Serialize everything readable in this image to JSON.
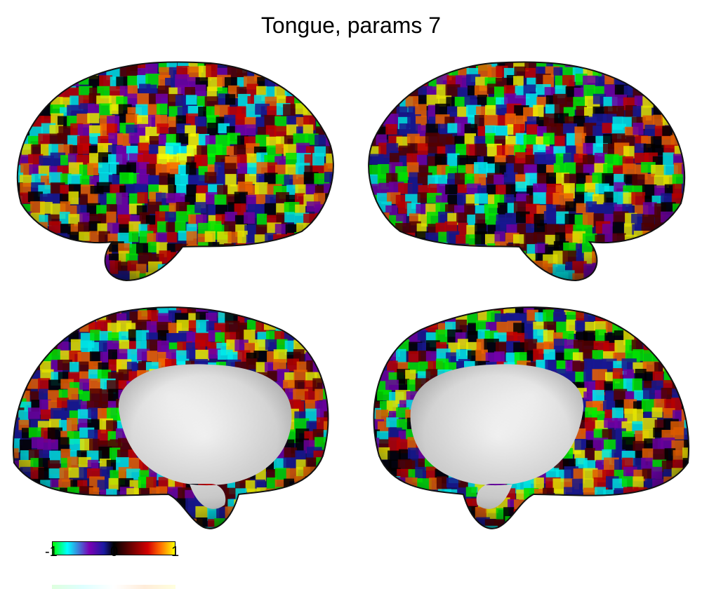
{
  "title": "Tongue, params 7",
  "colorbar": {
    "ticks": [
      "-1",
      "0",
      "1"
    ],
    "colors": [
      "#00ff00",
      "#00ffff",
      "#7a00b4",
      "#1a1aa0",
      "#000000",
      "#5a0000",
      "#d40000",
      "#ff6a00",
      "#ffff00"
    ]
  },
  "views": [
    {
      "name": "left-lateral-view"
    },
    {
      "name": "right-lateral-view"
    },
    {
      "name": "left-medial-view"
    },
    {
      "name": "right-medial-view"
    }
  ]
}
